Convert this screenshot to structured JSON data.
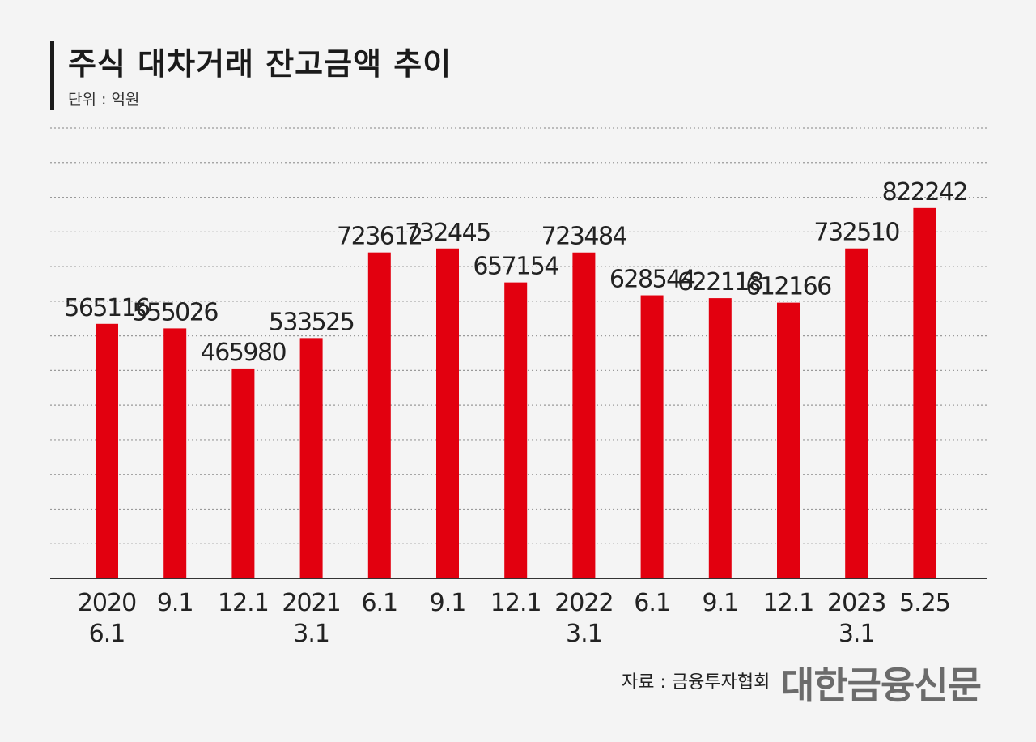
{
  "header": {
    "title": "주식 대차거래 잔고금액 추이",
    "unit": "단위 : 억원"
  },
  "footer": {
    "source": "자료 : 금융투자협회",
    "logo": "대한금융신문"
  },
  "colors": {
    "bar": "#e2000f",
    "grid": "#9a9a9a",
    "axis": "#333333",
    "text": "#222222"
  },
  "chart_data": {
    "type": "bar",
    "title": "주식 대차거래 잔고금액 추이",
    "ylabel": "",
    "xlabel": "",
    "ylim": [
      0,
      1000000
    ],
    "grid": true,
    "gridlines": 13,
    "categories": [
      [
        "2020",
        "6.1"
      ],
      [
        "9.1"
      ],
      [
        "12.1"
      ],
      [
        "2021",
        "3.1"
      ],
      [
        "6.1"
      ],
      [
        "9.1"
      ],
      [
        "12.1"
      ],
      [
        "2022",
        "3.1"
      ],
      [
        "6.1"
      ],
      [
        "9.1"
      ],
      [
        "12.1"
      ],
      [
        "2023",
        "3.1"
      ],
      [
        "5.25"
      ]
    ],
    "values": [
      565116,
      555026,
      465980,
      533525,
      723612,
      732445,
      657154,
      723484,
      628544,
      622118,
      612166,
      732510,
      822242
    ],
    "value_labels": [
      "565116",
      "555026",
      "465980",
      "533525",
      "723612",
      "732445",
      "657154",
      "723484",
      "628544",
      "622118",
      "612166",
      "732510",
      "822242"
    ]
  }
}
